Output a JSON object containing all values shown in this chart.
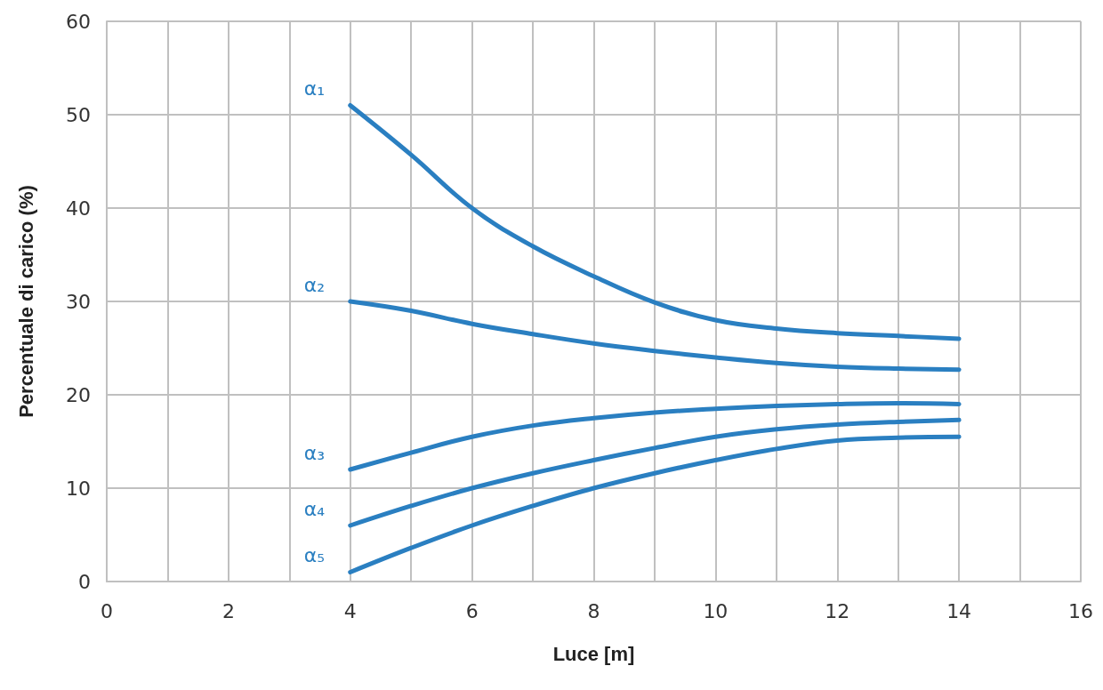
{
  "chart_data": {
    "type": "line",
    "xlabel": "Luce [m]",
    "ylabel": "Percentuale di carico (%)",
    "x": [
      4,
      5,
      6,
      7,
      8,
      9,
      10,
      11,
      12,
      13,
      14
    ],
    "series": [
      {
        "name": "α₁",
        "color": "#2a7fc1",
        "values": [
          51,
          45.7,
          40,
          35.9,
          32.7,
          29.9,
          28,
          27.1,
          26.6,
          26.3,
          26
        ]
      },
      {
        "name": "α₂",
        "color": "#2a7fc1",
        "values": [
          30,
          29,
          27.6,
          26.5,
          25.5,
          24.7,
          24,
          23.4,
          23,
          22.8,
          22.7
        ]
      },
      {
        "name": "α₃",
        "color": "#2a7fc1",
        "values": [
          12,
          13.8,
          15.5,
          16.7,
          17.5,
          18.1,
          18.5,
          18.8,
          19,
          19.1,
          19
        ]
      },
      {
        "name": "α₄",
        "color": "#2a7fc1",
        "values": [
          6,
          8.1,
          10,
          11.6,
          13,
          14.3,
          15.5,
          16.3,
          16.8,
          17.1,
          17.3
        ]
      },
      {
        "name": "α₅",
        "color": "#2a7fc1",
        "values": [
          1,
          3.6,
          6,
          8.1,
          10,
          11.6,
          13,
          14.2,
          15.1,
          15.4,
          15.5
        ]
      }
    ],
    "xlim": [
      0,
      16
    ],
    "xticks": [
      0,
      {
        "value": 1,
        "label": null
      },
      2,
      {
        "value": 3,
        "label": null
      },
      4,
      {
        "value": 5,
        "label": null
      },
      6,
      {
        "value": 7,
        "label": null
      },
      8,
      {
        "value": 9,
        "label": null
      },
      10,
      {
        "value": 11,
        "label": null
      },
      12,
      {
        "value": 13,
        "label": null
      },
      14,
      {
        "value": 15,
        "label": null
      },
      16
    ],
    "ylim": [
      0,
      60
    ],
    "yticks": [
      0,
      10,
      20,
      30,
      40,
      50,
      60
    ],
    "grid": true,
    "legend": false,
    "marker": "none",
    "line_style": "solid"
  }
}
